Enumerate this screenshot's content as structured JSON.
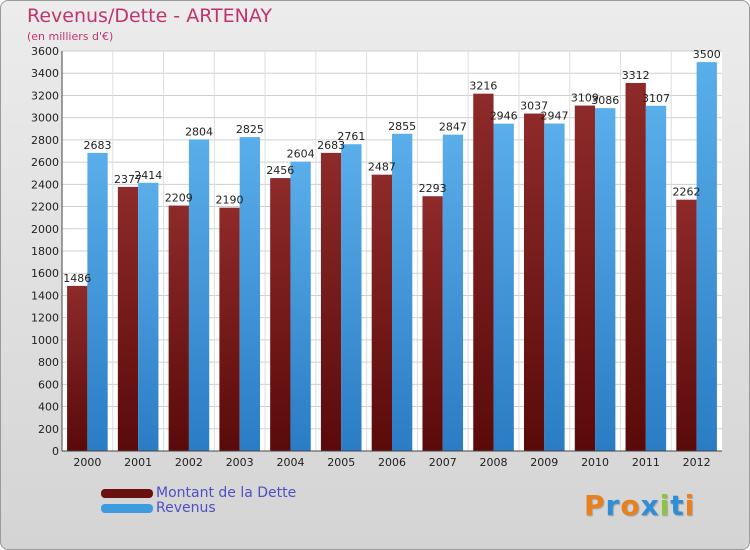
{
  "chart_data": {
    "type": "bar",
    "title": "Revenus/Dette - ARTENAY",
    "subtitle": "(en milliers d'€)",
    "categories": [
      "2000",
      "2001",
      "2002",
      "2003",
      "2004",
      "2005",
      "2006",
      "2007",
      "2008",
      "2009",
      "2010",
      "2011",
      "2012"
    ],
    "series": [
      {
        "name": "Montant de la Dette",
        "values": [
          1486,
          2377,
          2209,
          2190,
          2456,
          2683,
          2487,
          2293,
          3216,
          3037,
          3109,
          3312,
          2262
        ],
        "color": "#7a1c1c"
      },
      {
        "name": "Revenus",
        "values": [
          2683,
          2414,
          2804,
          2825,
          2604,
          2761,
          2855,
          2847,
          2946,
          2947,
          3086,
          3107,
          3500
        ],
        "color": "#3d9be0"
      }
    ],
    "ylim": [
      0,
      3600
    ],
    "yticks": [
      0,
      200,
      400,
      600,
      800,
      1000,
      1200,
      1400,
      1600,
      1800,
      2000,
      2200,
      2400,
      2600,
      2800,
      3000,
      3200,
      3400,
      3600
    ],
    "grid": true,
    "legend": "bottom-left"
  },
  "logo": {
    "letters": [
      "P",
      "r",
      "o",
      "x",
      "i",
      "t",
      "i"
    ],
    "colors": [
      "#e8801e",
      "#2f8ed6",
      "#e8801e",
      "#2f8ed6",
      "#8cc63f",
      "#2f8ed6",
      "#e8801e"
    ]
  }
}
